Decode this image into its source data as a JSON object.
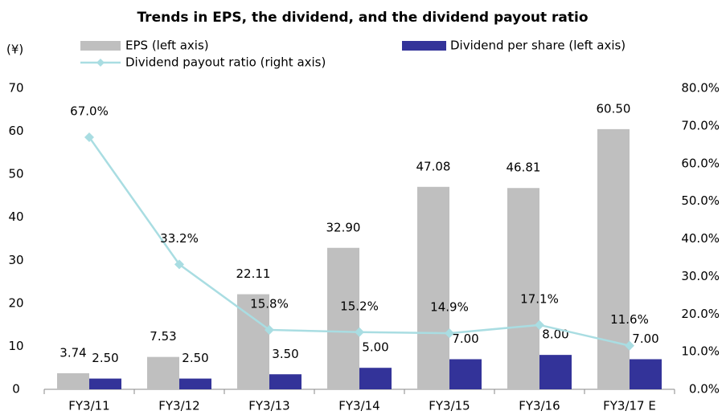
{
  "chart_data": {
    "type": "bar",
    "title": "Trends in EPS, the dividend, and the dividend payout ratio",
    "y_unit": "(¥)",
    "categories": [
      "FY3/11",
      "FY3/12",
      "FY3/13",
      "FY3/14",
      "FY3/15",
      "FY3/16",
      "FY3/17 E"
    ],
    "series": [
      {
        "name": "EPS (left axis)",
        "color": "#bfbfbf",
        "kind": "bar",
        "values": [
          3.74,
          7.53,
          22.11,
          32.9,
          47.08,
          46.81,
          60.5
        ],
        "value_labels": [
          "3.74",
          "7.53",
          "22.11",
          "32.90",
          "47.08",
          "46.81",
          "60.50"
        ]
      },
      {
        "name": "Dividend per share (left axis)",
        "color": "#333399",
        "kind": "bar",
        "values": [
          2.5,
          2.5,
          3.5,
          5,
          7,
          8,
          7
        ],
        "value_labels": [
          "2.50",
          "2.50",
          "3.50",
          "5.00",
          "7.00",
          "8.00",
          "7.00"
        ]
      },
      {
        "name": "Dividend payout ratio (right axis)",
        "color": "#a9dde2",
        "kind": "line",
        "axis": "y2",
        "values": [
          67.0,
          33.2,
          15.8,
          15.2,
          14.9,
          17.1,
          11.6
        ],
        "value_labels": [
          "67.0%",
          "33.2%",
          "15.8%",
          "15.2%",
          "14.9%",
          "17.1%",
          "11.6%"
        ]
      }
    ],
    "ylim": [
      0,
      70
    ],
    "yticks": [
      0,
      10,
      20,
      30,
      40,
      50,
      60,
      70
    ],
    "y2lim": [
      0,
      80
    ],
    "y2ticks": [
      {
        "value": 0,
        "label": "0.0%"
      },
      {
        "value": 10,
        "label": "10.0%"
      },
      {
        "value": 20,
        "label": "20.0%"
      },
      {
        "value": 30,
        "label": "30.0%"
      },
      {
        "value": 40,
        "label": "40.0%"
      },
      {
        "value": 50,
        "label": "50.0%"
      },
      {
        "value": 60,
        "label": "60.0%"
      },
      {
        "value": 70,
        "label": "70.0%"
      },
      {
        "value": 80,
        "label": "80.0%"
      }
    ],
    "grid": false
  }
}
